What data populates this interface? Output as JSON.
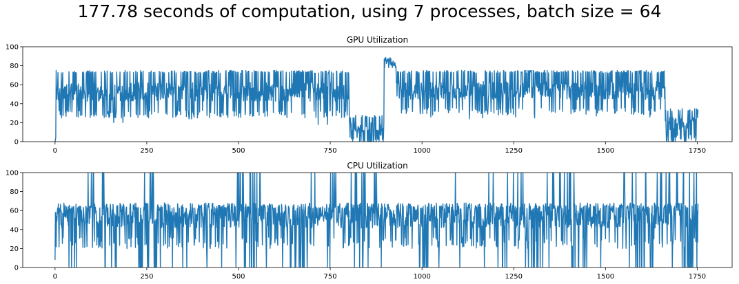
{
  "figure": {
    "title": "177.78 seconds of computation, using 7 processes, batch size = 64"
  },
  "style": {
    "line_color": "#1f77b4",
    "axis_color": "#000000"
  },
  "chart_data": [
    {
      "type": "line",
      "title": "GPU Utilization",
      "xlabel": "",
      "ylabel": "",
      "xlim": [
        -88,
        1845
      ],
      "ylim": [
        0,
        100
      ],
      "xticks": [
        0,
        250,
        500,
        750,
        1000,
        1250,
        1500,
        1750
      ],
      "yticks": [
        0,
        20,
        40,
        60,
        80,
        100
      ],
      "grid": false,
      "legend": "none",
      "n_points": 1753,
      "segments": [
        {
          "x_start": 0,
          "x_end": 3,
          "pattern": "ramp",
          "low": 0,
          "high": 6
        },
        {
          "x_start": 3,
          "x_end": 802,
          "pattern": "oscillating",
          "low": 25,
          "high": 75,
          "typical": 55
        },
        {
          "x_start": 802,
          "x_end": 897,
          "pattern": "oscillating",
          "low": 0,
          "high": 28,
          "typical": 20
        },
        {
          "x_start": 897,
          "x_end": 930,
          "pattern": "plateau",
          "low": 78,
          "high": 88,
          "typical": 84
        },
        {
          "x_start": 930,
          "x_end": 1663,
          "pattern": "oscillating",
          "low": 28,
          "high": 75,
          "typical": 55
        },
        {
          "x_start": 1663,
          "x_end": 1752,
          "pattern": "oscillating",
          "low": 0,
          "high": 35,
          "typical": 20
        }
      ],
      "dips": [
        {
          "x": 160,
          "y": 20
        },
        {
          "x": 185,
          "y": 20
        },
        {
          "x": 365,
          "y": 24
        },
        {
          "x": 372,
          "y": 24
        },
        {
          "x": 717,
          "y": 18
        },
        {
          "x": 742,
          "y": 18
        },
        {
          "x": 1024,
          "y": 26
        },
        {
          "x": 1129,
          "y": 24
        },
        {
          "x": 1165,
          "y": 25
        },
        {
          "x": 1255,
          "y": 26
        },
        {
          "x": 1307,
          "y": 25
        },
        {
          "x": 1475,
          "y": 27
        },
        {
          "x": 1525,
          "y": 30
        },
        {
          "x": 1621,
          "y": 26
        }
      ]
    },
    {
      "type": "line",
      "title": "CPU Utilization",
      "xlabel": "",
      "ylabel": "",
      "xlim": [
        -88,
        1845
      ],
      "ylim": [
        0,
        100
      ],
      "xticks": [
        0,
        250,
        500,
        750,
        1000,
        1250,
        1500,
        1750
      ],
      "yticks": [
        0,
        20,
        40,
        60,
        80,
        100
      ],
      "grid": false,
      "legend": "none",
      "n_points": 1753,
      "segments": [
        {
          "x_start": 0,
          "x_end": 1753,
          "pattern": "oscillating",
          "low": 20,
          "high": 68,
          "typical": 55
        }
      ],
      "zero_drop_dense": [
        [
          35,
          60
        ],
        [
          135,
          175
        ],
        [
          225,
          290
        ],
        [
          490,
          560
        ],
        [
          640,
          700
        ],
        [
          810,
          860
        ],
        [
          985,
          1025
        ],
        [
          1175,
          1235
        ],
        [
          1280,
          1330
        ],
        [
          1405,
          1450
        ],
        [
          1565,
          1630
        ],
        [
          1700,
          1750
        ]
      ],
      "full_spikes_dense": [
        [
          80,
          140
        ],
        [
          220,
          285
        ],
        [
          495,
          570
        ],
        [
          690,
          770
        ],
        [
          795,
          850
        ],
        [
          870,
          930
        ],
        [
          1230,
          1290
        ],
        [
          1340,
          1420
        ],
        [
          1550,
          1600
        ],
        [
          1640,
          1700
        ],
        [
          1740,
          1755
        ]
      ]
    }
  ]
}
